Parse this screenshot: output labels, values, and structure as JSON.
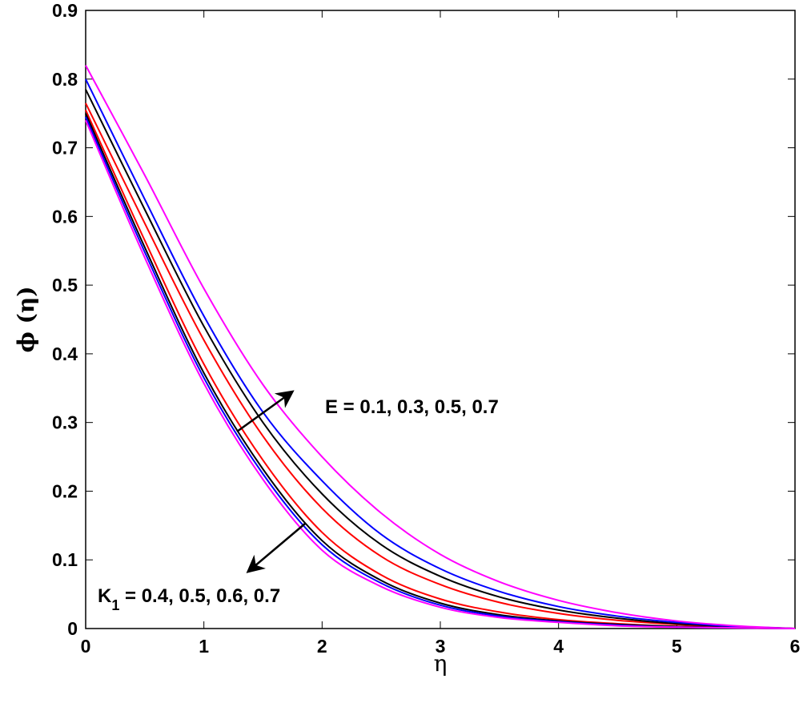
{
  "chart_data": {
    "type": "line",
    "title": "",
    "xlabel": "η",
    "ylabel": "ϕ (η)",
    "xlim": [
      0,
      6
    ],
    "ylim": [
      0,
      0.9
    ],
    "xticks": [
      0,
      1,
      2,
      3,
      4,
      5,
      6
    ],
    "yticks": [
      0,
      0.1,
      0.2,
      0.3,
      0.4,
      0.5,
      0.6,
      0.7,
      0.8,
      0.9
    ],
    "xtick_labels": [
      "0",
      "1",
      "2",
      "3",
      "4",
      "5",
      "6"
    ],
    "ytick_labels": [
      "0",
      "0.1",
      "0.2",
      "0.3",
      "0.4",
      "0.5",
      "0.6",
      "0.7",
      "0.8",
      "0.9"
    ],
    "grid": false,
    "legend": null,
    "x": [
      0,
      0.5,
      1,
      1.5,
      2,
      2.5,
      3,
      3.5,
      4,
      4.5,
      5,
      5.5,
      6
    ],
    "series": [
      {
        "name": "E = 0.1",
        "group": "E",
        "color": "#ff0000",
        "values": [
          0.765,
          0.59,
          0.42,
          0.28,
          0.175,
          0.105,
          0.064,
          0.038,
          0.022,
          0.012,
          0.006,
          0.002,
          0.0
        ]
      },
      {
        "name": "E = 0.3",
        "group": "E",
        "color": "#000000",
        "values": [
          0.785,
          0.61,
          0.44,
          0.3,
          0.196,
          0.122,
          0.076,
          0.046,
          0.027,
          0.015,
          0.007,
          0.003,
          0.0
        ]
      },
      {
        "name": "E = 0.5",
        "group": "E",
        "color": "#0000ff",
        "values": [
          0.8,
          0.625,
          0.455,
          0.315,
          0.215,
          0.137,
          0.087,
          0.054,
          0.032,
          0.018,
          0.009,
          0.003,
          0.0
        ]
      },
      {
        "name": "E = 0.7",
        "group": "E",
        "color": "#ff00ff",
        "values": [
          0.82,
          0.66,
          0.495,
          0.355,
          0.25,
          0.168,
          0.108,
          0.068,
          0.041,
          0.023,
          0.011,
          0.004,
          0.0
        ]
      },
      {
        "name": "K1 = 0.4",
        "group": "K1",
        "color": "#ff0000",
        "values": [
          0.755,
          0.565,
          0.385,
          0.245,
          0.14,
          0.078,
          0.043,
          0.024,
          0.013,
          0.007,
          0.003,
          0.001,
          0.0
        ]
      },
      {
        "name": "K1 = 0.5",
        "group": "K1",
        "color": "#000000",
        "values": [
          0.75,
          0.555,
          0.372,
          0.232,
          0.128,
          0.07,
          0.037,
          0.02,
          0.011,
          0.006,
          0.003,
          0.001,
          0.0
        ]
      },
      {
        "name": "K1 = 0.6",
        "group": "K1",
        "color": "#0000ff",
        "values": [
          0.745,
          0.548,
          0.365,
          0.225,
          0.122,
          0.066,
          0.034,
          0.018,
          0.01,
          0.005,
          0.002,
          0.001,
          0.0
        ]
      },
      {
        "name": "K1 = 0.7",
        "group": "K1",
        "color": "#ff00ff",
        "values": [
          0.74,
          0.54,
          0.357,
          0.217,
          0.114,
          0.061,
          0.031,
          0.016,
          0.009,
          0.004,
          0.002,
          0.001,
          0.0
        ]
      }
    ],
    "annotations": [
      {
        "text": "E = 0.1, 0.3, 0.5, 0.7",
        "x": 2.05,
        "y": 0.32,
        "arrow": {
          "from": [
            1.28,
            0.287
          ],
          "to": [
            1.76,
            0.345
          ]
        }
      },
      {
        "text": "K₁ = 0.4, 0.5, 0.6, 0.7",
        "x": 0.1,
        "y": 0.045,
        "arrow": {
          "from": [
            1.87,
            0.152
          ],
          "to": [
            1.37,
            0.083
          ]
        }
      }
    ]
  },
  "labels": {
    "xlabel": "η",
    "ylabel": "ϕ (η)",
    "annot_e": "E = 0.1, 0.3, 0.5, 0.7",
    "annot_k_main": "K",
    "annot_k_sub": "1",
    "annot_k_rest": " = 0.4, 0.5, 0.6, 0.7"
  }
}
